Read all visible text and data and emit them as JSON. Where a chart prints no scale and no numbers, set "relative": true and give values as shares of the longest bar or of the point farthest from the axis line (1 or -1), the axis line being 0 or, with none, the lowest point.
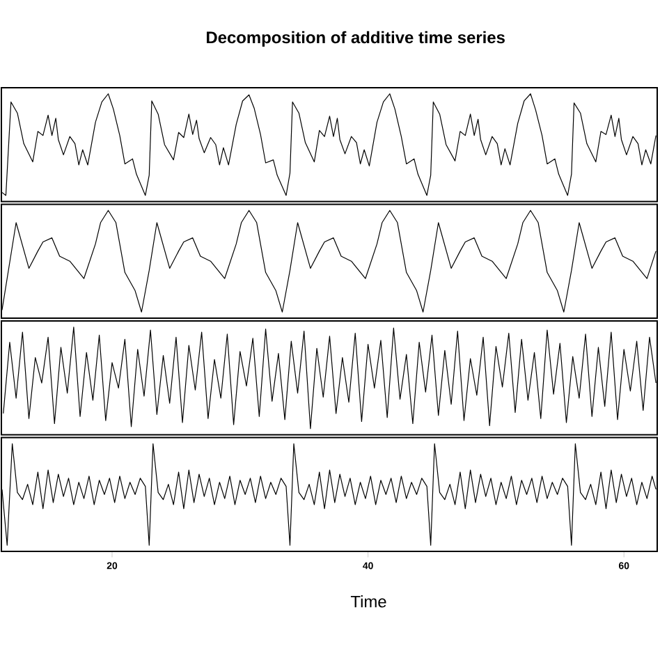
{
  "chart_data": [
    {
      "type": "line",
      "title": "Decomposition of additive time series",
      "relative": true,
      "color": "#000000",
      "xlim": [
        11.35,
        62.6
      ],
      "tick_labels": false,
      "x": [
        11.4,
        11.7,
        12.1,
        12.6,
        13.1,
        13.8,
        14.2,
        14.6,
        15.0,
        15.3,
        15.6,
        15.8,
        16.2,
        16.7,
        17.1,
        17.4,
        17.7,
        18.1,
        18.7,
        19.2,
        19.7,
        20.1,
        20.6,
        21.0,
        21.6,
        21.9,
        22.6,
        22.9,
        23.1,
        23.6,
        24.1,
        24.8,
        25.2,
        25.6,
        26.0,
        26.3,
        26.6,
        26.8,
        27.2,
        27.7,
        28.1,
        28.4,
        28.7,
        29.1,
        29.7,
        30.2,
        30.7,
        31.1,
        31.6,
        32.0,
        32.6,
        32.9,
        33.6,
        33.9,
        34.1,
        34.6,
        35.1,
        35.8,
        36.2,
        36.6,
        37.0,
        37.3,
        37.6,
        37.8,
        38.2,
        38.7,
        39.1,
        39.4,
        39.7,
        40.1,
        40.7,
        41.2,
        41.7,
        42.1,
        42.6,
        43.0,
        43.6,
        43.9,
        44.6,
        44.9,
        45.1,
        45.6,
        46.1,
        46.8,
        47.2,
        47.6,
        48.0,
        48.3,
        48.6,
        48.8,
        49.2,
        49.7,
        50.1,
        50.4,
        50.7,
        51.1,
        51.7,
        52.2,
        52.7,
        53.1,
        53.6,
        54.0,
        54.6,
        54.9,
        55.6,
        55.9,
        56.1,
        56.6,
        57.1,
        57.8,
        58.2,
        58.6,
        59.0,
        59.3,
        59.6,
        59.8,
        60.2,
        60.7,
        61.1,
        61.4,
        61.7,
        62.1,
        62.5
      ],
      "values": [
        0.03,
        0.0,
        0.92,
        0.81,
        0.51,
        0.33,
        0.63,
        0.59,
        0.79,
        0.59,
        0.76,
        0.55,
        0.4,
        0.58,
        0.51,
        0.3,
        0.45,
        0.3,
        0.72,
        0.92,
        1.0,
        0.85,
        0.59,
        0.31,
        0.36,
        0.21,
        0.0,
        0.2,
        0.93,
        0.8,
        0.5,
        0.35,
        0.62,
        0.57,
        0.8,
        0.6,
        0.74,
        0.56,
        0.42,
        0.57,
        0.5,
        0.3,
        0.47,
        0.3,
        0.7,
        0.93,
        0.99,
        0.86,
        0.6,
        0.32,
        0.35,
        0.2,
        0.0,
        0.22,
        0.92,
        0.81,
        0.52,
        0.33,
        0.64,
        0.58,
        0.78,
        0.58,
        0.76,
        0.55,
        0.41,
        0.58,
        0.52,
        0.31,
        0.45,
        0.29,
        0.72,
        0.92,
        1.0,
        0.85,
        0.58,
        0.31,
        0.36,
        0.21,
        0.0,
        0.2,
        0.92,
        0.8,
        0.5,
        0.34,
        0.63,
        0.59,
        0.8,
        0.59,
        0.75,
        0.55,
        0.4,
        0.58,
        0.51,
        0.3,
        0.46,
        0.3,
        0.71,
        0.93,
        1.0,
        0.84,
        0.59,
        0.31,
        0.36,
        0.21,
        0.0,
        0.21,
        0.91,
        0.81,
        0.51,
        0.33,
        0.63,
        0.6,
        0.79,
        0.58,
        0.76,
        0.55,
        0.4,
        0.58,
        0.51,
        0.3,
        0.45,
        0.31,
        0.59
      ]
    },
    {
      "type": "line",
      "relative": true,
      "color": "#000000",
      "xlim": [
        11.35,
        62.6
      ],
      "tick_labels": false,
      "x": [
        11.4,
        12.5,
        13.5,
        14.2,
        14.6,
        15.3,
        15.9,
        16.7,
        17.8,
        18.7,
        19.1,
        19.7,
        20.3,
        21.0,
        21.8,
        22.3,
        22.9,
        23.5,
        24.5,
        25.2,
        25.6,
        26.3,
        26.9,
        27.7,
        28.8,
        29.7,
        30.1,
        30.7,
        31.3,
        32.0,
        32.8,
        33.3,
        33.9,
        34.5,
        35.5,
        36.2,
        36.6,
        37.3,
        37.9,
        38.7,
        39.8,
        40.7,
        41.1,
        41.7,
        42.3,
        43.0,
        43.8,
        44.3,
        44.9,
        45.5,
        46.5,
        47.2,
        47.6,
        48.3,
        48.9,
        49.7,
        50.8,
        51.7,
        52.1,
        52.7,
        53.3,
        54.0,
        54.8,
        55.3,
        55.9,
        56.5,
        57.5,
        58.2,
        58.6,
        59.3,
        59.9,
        60.7,
        61.8,
        62.5
      ],
      "values": [
        0.02,
        0.88,
        0.43,
        0.6,
        0.69,
        0.73,
        0.55,
        0.5,
        0.33,
        0.67,
        0.88,
        1.0,
        0.88,
        0.39,
        0.21,
        0.0,
        0.41,
        0.88,
        0.43,
        0.6,
        0.69,
        0.73,
        0.55,
        0.5,
        0.33,
        0.67,
        0.88,
        1.0,
        0.88,
        0.39,
        0.21,
        0.0,
        0.41,
        0.88,
        0.43,
        0.6,
        0.69,
        0.73,
        0.55,
        0.5,
        0.33,
        0.67,
        0.88,
        1.0,
        0.88,
        0.39,
        0.21,
        0.0,
        0.41,
        0.88,
        0.43,
        0.6,
        0.69,
        0.73,
        0.55,
        0.5,
        0.33,
        0.67,
        0.88,
        1.0,
        0.88,
        0.39,
        0.21,
        0.0,
        0.41,
        0.88,
        0.43,
        0.6,
        0.69,
        0.73,
        0.55,
        0.5,
        0.33,
        0.6
      ]
    },
    {
      "type": "line",
      "relative": true,
      "color": "#000000",
      "xlim": [
        11.35,
        62.6
      ],
      "tick_labels": false,
      "x": [
        11.5,
        12.0,
        12.5,
        13.0,
        13.5,
        14.0,
        14.5,
        15.0,
        15.5,
        16.0,
        16.5,
        17.0,
        17.5,
        18.0,
        18.5,
        19.0,
        19.5,
        20.0,
        20.5,
        21.0,
        21.5,
        22.0,
        22.5,
        23.0,
        23.5,
        24.0,
        24.5,
        25.0,
        25.5,
        26.0,
        26.5,
        27.0,
        27.5,
        28.0,
        28.5,
        29.0,
        29.5,
        30.0,
        30.5,
        31.0,
        31.5,
        32.0,
        32.5,
        33.0,
        33.5,
        34.0,
        34.5,
        35.0,
        35.5,
        36.0,
        36.5,
        37.0,
        37.5,
        38.0,
        38.5,
        39.0,
        39.5,
        40.0,
        40.5,
        41.0,
        41.5,
        42.0,
        42.5,
        43.0,
        43.5,
        44.0,
        44.5,
        45.0,
        45.5,
        46.0,
        46.5,
        47.0,
        47.5,
        48.0,
        48.5,
        49.0,
        49.5,
        50.0,
        50.5,
        51.0,
        51.5,
        52.0,
        52.5,
        53.0,
        53.5,
        54.0,
        54.5,
        55.0,
        55.5,
        56.0,
        56.5,
        57.0,
        57.5,
        58.0,
        58.5,
        59.0,
        59.5,
        60.0,
        60.5,
        61.0,
        61.5,
        62.0,
        62.5
      ],
      "values": [
        0.15,
        0.85,
        0.3,
        0.95,
        0.1,
        0.7,
        0.45,
        0.9,
        0.05,
        0.8,
        0.35,
        1.0,
        0.12,
        0.75,
        0.28,
        0.92,
        0.08,
        0.65,
        0.4,
        0.88,
        0.02,
        0.78,
        0.32,
        0.97,
        0.14,
        0.72,
        0.25,
        0.9,
        0.06,
        0.82,
        0.38,
        0.95,
        0.1,
        0.68,
        0.3,
        0.93,
        0.04,
        0.76,
        0.42,
        0.89,
        0.12,
        0.98,
        0.27,
        0.74,
        0.09,
        0.86,
        0.35,
        0.96,
        0.0,
        0.79,
        0.31,
        0.91,
        0.15,
        0.7,
        0.26,
        0.94,
        0.07,
        0.83,
        0.4,
        0.87,
        0.11,
        0.99,
        0.29,
        0.73,
        0.05,
        0.85,
        0.36,
        0.92,
        0.13,
        0.77,
        0.24,
        0.96,
        0.08,
        0.69,
        0.33,
        0.9,
        0.03,
        0.81,
        0.41,
        0.94,
        0.16,
        0.88,
        0.28,
        0.75,
        0.1,
        0.97,
        0.34,
        0.84,
        0.06,
        0.71,
        0.3,
        0.93,
        0.12,
        0.8,
        0.22,
        0.95,
        0.09,
        0.78,
        0.37,
        0.86,
        0.18,
        0.9,
        0.45
      ]
    },
    {
      "type": "line",
      "relative": true,
      "color": "#000000",
      "xlim": [
        11.35,
        62.6
      ],
      "xticks": [
        20,
        40,
        60
      ],
      "tick_labels": "x",
      "xlabel": "Time",
      "x": [
        11.4,
        11.8,
        12.2,
        12.6,
        13.0,
        13.4,
        13.8,
        14.2,
        14.6,
        15.0,
        15.4,
        15.8,
        16.2,
        16.6,
        17.0,
        17.4,
        17.8,
        18.2,
        18.6,
        19.0,
        19.4,
        19.8,
        20.2,
        20.6,
        21.0,
        21.4,
        21.8,
        22.2,
        22.6,
        22.9,
        23.2,
        23.6,
        24.0,
        24.4,
        24.8,
        25.2,
        25.6,
        26.0,
        26.4,
        26.8,
        27.2,
        27.6,
        28.0,
        28.4,
        28.8,
        29.2,
        29.6,
        30.0,
        30.4,
        30.8,
        31.2,
        31.6,
        32.0,
        32.4,
        32.8,
        33.2,
        33.6,
        33.9,
        34.2,
        34.6,
        35.0,
        35.4,
        35.8,
        36.2,
        36.6,
        37.0,
        37.4,
        37.8,
        38.2,
        38.6,
        39.0,
        39.4,
        39.8,
        40.2,
        40.6,
        41.0,
        41.4,
        41.8,
        42.2,
        42.6,
        43.0,
        43.4,
        43.8,
        44.2,
        44.6,
        44.9,
        45.2,
        45.6,
        46.0,
        46.4,
        46.8,
        47.2,
        47.6,
        48.0,
        48.4,
        48.8,
        49.2,
        49.6,
        50.0,
        50.4,
        50.8,
        51.2,
        51.6,
        52.0,
        52.4,
        52.8,
        53.2,
        53.6,
        54.0,
        54.4,
        54.8,
        55.2,
        55.6,
        55.9,
        56.2,
        56.6,
        57.0,
        57.4,
        57.8,
        58.2,
        58.6,
        59.0,
        59.4,
        59.8,
        60.2,
        60.6,
        61.0,
        61.4,
        61.8,
        62.2,
        62.5
      ],
      "values": [
        0.55,
        0.0,
        1.0,
        0.52,
        0.45,
        0.6,
        0.4,
        0.72,
        0.36,
        0.74,
        0.42,
        0.7,
        0.48,
        0.66,
        0.4,
        0.62,
        0.46,
        0.68,
        0.4,
        0.64,
        0.5,
        0.66,
        0.42,
        0.68,
        0.46,
        0.62,
        0.5,
        0.66,
        0.58,
        0.0,
        1.0,
        0.52,
        0.45,
        0.6,
        0.4,
        0.72,
        0.36,
        0.74,
        0.42,
        0.7,
        0.48,
        0.66,
        0.4,
        0.62,
        0.46,
        0.68,
        0.4,
        0.64,
        0.5,
        0.66,
        0.42,
        0.68,
        0.46,
        0.62,
        0.5,
        0.66,
        0.58,
        0.0,
        1.0,
        0.52,
        0.45,
        0.6,
        0.4,
        0.72,
        0.36,
        0.74,
        0.42,
        0.7,
        0.48,
        0.66,
        0.4,
        0.62,
        0.46,
        0.68,
        0.4,
        0.64,
        0.5,
        0.66,
        0.42,
        0.68,
        0.46,
        0.62,
        0.5,
        0.66,
        0.58,
        0.0,
        1.0,
        0.52,
        0.45,
        0.6,
        0.4,
        0.72,
        0.36,
        0.74,
        0.42,
        0.7,
        0.48,
        0.66,
        0.4,
        0.62,
        0.46,
        0.68,
        0.4,
        0.64,
        0.5,
        0.66,
        0.42,
        0.68,
        0.46,
        0.62,
        0.5,
        0.66,
        0.58,
        0.0,
        1.0,
        0.52,
        0.45,
        0.6,
        0.4,
        0.72,
        0.36,
        0.74,
        0.42,
        0.7,
        0.48,
        0.66,
        0.4,
        0.62,
        0.46,
        0.68,
        0.55
      ]
    }
  ]
}
